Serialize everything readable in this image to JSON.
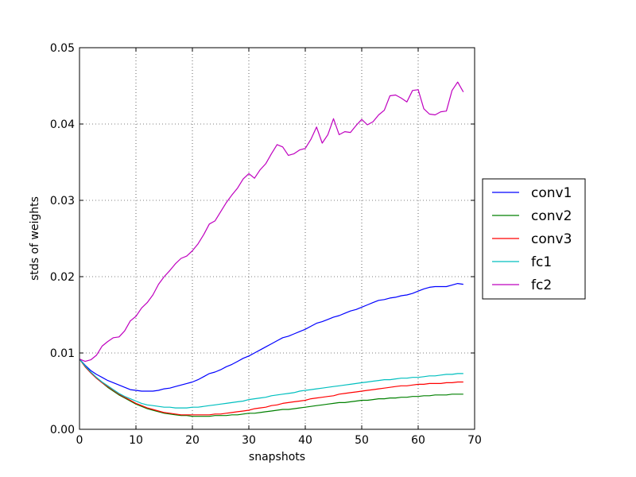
{
  "chart_data": {
    "type": "line",
    "xlabel": "snapshots",
    "ylabel": "stds of weights",
    "xlim": [
      0,
      70
    ],
    "ylim": [
      0,
      0.05
    ],
    "xticks": [
      0,
      10,
      20,
      30,
      40,
      50,
      60,
      70
    ],
    "yticks": [
      0,
      0.01,
      0.02,
      0.03,
      0.04,
      0.05
    ],
    "xtick_labels": [
      "0",
      "10",
      "20",
      "30",
      "40",
      "50",
      "60",
      "70"
    ],
    "ytick_labels": [
      "0.00",
      "0.01",
      "0.02",
      "0.03",
      "0.04",
      "0.05"
    ],
    "grid": true,
    "legend_position": "outside-right",
    "x": [
      0,
      1,
      2,
      3,
      4,
      5,
      6,
      7,
      8,
      9,
      10,
      11,
      12,
      13,
      14,
      15,
      16,
      17,
      18,
      19,
      20,
      21,
      22,
      23,
      24,
      25,
      26,
      27,
      28,
      29,
      30,
      31,
      32,
      33,
      34,
      35,
      36,
      37,
      38,
      39,
      40,
      41,
      42,
      43,
      44,
      45,
      46,
      47,
      48,
      49,
      50,
      51,
      52,
      53,
      54,
      55,
      56,
      57,
      58,
      59,
      60,
      61,
      62,
      63,
      64,
      65,
      66,
      67,
      68
    ],
    "series": [
      {
        "name": "conv1",
        "color": "#0000ff",
        "values": [
          0.0092,
          0.0084,
          0.0077,
          0.0072,
          0.0068,
          0.0064,
          0.0061,
          0.0058,
          0.0055,
          0.0052,
          0.0051,
          0.005,
          0.005,
          0.005,
          0.0051,
          0.0053,
          0.0054,
          0.0056,
          0.0058,
          0.006,
          0.0062,
          0.0065,
          0.0069,
          0.0073,
          0.0075,
          0.0078,
          0.0082,
          0.0085,
          0.0089,
          0.0093,
          0.0096,
          0.01,
          0.0104,
          0.0108,
          0.0112,
          0.0116,
          0.012,
          0.0122,
          0.0125,
          0.0128,
          0.0131,
          0.0135,
          0.0139,
          0.0141,
          0.0144,
          0.0147,
          0.0149,
          0.0152,
          0.0155,
          0.0157,
          0.016,
          0.0163,
          0.0166,
          0.0169,
          0.017,
          0.0172,
          0.0173,
          0.0175,
          0.0176,
          0.0178,
          0.0181,
          0.0184,
          0.0186,
          0.0187,
          0.0187,
          0.0187,
          0.0189,
          0.0191,
          0.019
        ]
      },
      {
        "name": "conv2",
        "color": "#008000",
        "values": [
          0.0092,
          0.0082,
          0.0074,
          0.0067,
          0.0061,
          0.0055,
          0.005,
          0.0045,
          0.0041,
          0.0037,
          0.0033,
          0.003,
          0.0027,
          0.0025,
          0.0023,
          0.0021,
          0.002,
          0.0019,
          0.0018,
          0.0018,
          0.0017,
          0.0017,
          0.0017,
          0.0017,
          0.0018,
          0.0018,
          0.0018,
          0.0019,
          0.0019,
          0.002,
          0.0021,
          0.0021,
          0.0022,
          0.0023,
          0.0024,
          0.0025,
          0.0026,
          0.0026,
          0.0027,
          0.0028,
          0.0029,
          0.003,
          0.0031,
          0.0032,
          0.0033,
          0.0034,
          0.0035,
          0.0035,
          0.0036,
          0.0037,
          0.0038,
          0.0038,
          0.0039,
          0.004,
          0.004,
          0.0041,
          0.0041,
          0.0042,
          0.0042,
          0.0043,
          0.0043,
          0.0044,
          0.0044,
          0.0045,
          0.0045,
          0.0045,
          0.0046,
          0.0046,
          0.0046
        ]
      },
      {
        "name": "conv3",
        "color": "#ff0000",
        "values": [
          0.0092,
          0.0082,
          0.0074,
          0.0067,
          0.0061,
          0.0056,
          0.0051,
          0.0046,
          0.0042,
          0.0038,
          0.0034,
          0.0031,
          0.0028,
          0.0026,
          0.0024,
          0.0022,
          0.0021,
          0.002,
          0.0019,
          0.0019,
          0.0019,
          0.0019,
          0.0019,
          0.0019,
          0.002,
          0.002,
          0.0021,
          0.0022,
          0.0023,
          0.0024,
          0.0025,
          0.0027,
          0.0028,
          0.0029,
          0.0031,
          0.0032,
          0.0034,
          0.0035,
          0.0036,
          0.0037,
          0.0038,
          0.004,
          0.0041,
          0.0042,
          0.0043,
          0.0044,
          0.0046,
          0.0047,
          0.0048,
          0.0049,
          0.005,
          0.0051,
          0.0052,
          0.0053,
          0.0054,
          0.0055,
          0.0056,
          0.0057,
          0.0057,
          0.0058,
          0.0059,
          0.0059,
          0.006,
          0.006,
          0.006,
          0.0061,
          0.0061,
          0.0062,
          0.0062
        ]
      },
      {
        "name": "fc1",
        "color": "#00bfbf",
        "values": [
          0.0092,
          0.0083,
          0.0075,
          0.0068,
          0.0062,
          0.0057,
          0.0052,
          0.0047,
          0.0043,
          0.004,
          0.0037,
          0.0034,
          0.0032,
          0.0031,
          0.003,
          0.0029,
          0.0029,
          0.0028,
          0.0028,
          0.0028,
          0.0029,
          0.0029,
          0.003,
          0.0031,
          0.0032,
          0.0033,
          0.0034,
          0.0035,
          0.0036,
          0.0037,
          0.0039,
          0.004,
          0.0041,
          0.0042,
          0.0044,
          0.0045,
          0.0046,
          0.0047,
          0.0048,
          0.005,
          0.0051,
          0.0052,
          0.0053,
          0.0054,
          0.0055,
          0.0056,
          0.0057,
          0.0058,
          0.0059,
          0.006,
          0.0061,
          0.0062,
          0.0063,
          0.0064,
          0.0065,
          0.0065,
          0.0066,
          0.0067,
          0.0067,
          0.0068,
          0.0068,
          0.0069,
          0.007,
          0.007,
          0.0071,
          0.0072,
          0.0072,
          0.0073,
          0.0073
        ]
      },
      {
        "name": "fc2",
        "color": "#bf00bf",
        "values": [
          0.0092,
          0.0089,
          0.0091,
          0.0097,
          0.0109,
          0.0115,
          0.012,
          0.0121,
          0.0129,
          0.0142,
          0.0148,
          0.0159,
          0.0166,
          0.0176,
          0.019,
          0.02,
          0.0208,
          0.0217,
          0.0224,
          0.0227,
          0.0234,
          0.0243,
          0.0255,
          0.0269,
          0.0273,
          0.0285,
          0.0297,
          0.0307,
          0.0316,
          0.0328,
          0.0335,
          0.0329,
          0.034,
          0.0348,
          0.0361,
          0.0373,
          0.037,
          0.0359,
          0.0361,
          0.0366,
          0.0368,
          0.038,
          0.0396,
          0.0375,
          0.0386,
          0.0407,
          0.0386,
          0.039,
          0.0389,
          0.0398,
          0.0406,
          0.0399,
          0.0403,
          0.0412,
          0.0418,
          0.0437,
          0.0438,
          0.0434,
          0.0429,
          0.0444,
          0.0445,
          0.042,
          0.0413,
          0.0412,
          0.0416,
          0.0417,
          0.0444,
          0.0455,
          0.0442
        ]
      }
    ]
  }
}
